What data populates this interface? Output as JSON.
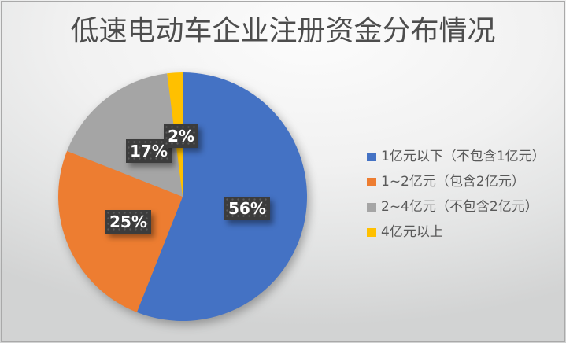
{
  "chart_data": {
    "type": "pie",
    "title": "低速电动车企业注册资金分布情况",
    "categories": [
      "1亿元以下（不包含1亿元）",
      "1~2亿元（包含2亿元）",
      "2~4亿元（不包含2亿元）",
      "4亿元以上"
    ],
    "values": [
      56,
      25,
      17,
      2
    ],
    "data_labels": [
      "56%",
      "25%",
      "17%",
      "2%"
    ],
    "colors": [
      "#4472C4",
      "#ED7D31",
      "#A5A5A5",
      "#FFC000"
    ],
    "label_box_color": "#3c3c3c",
    "label_text_color": "#ffffff",
    "legend_position": "right",
    "start_angle_deg": 0,
    "direction": "clockwise"
  }
}
